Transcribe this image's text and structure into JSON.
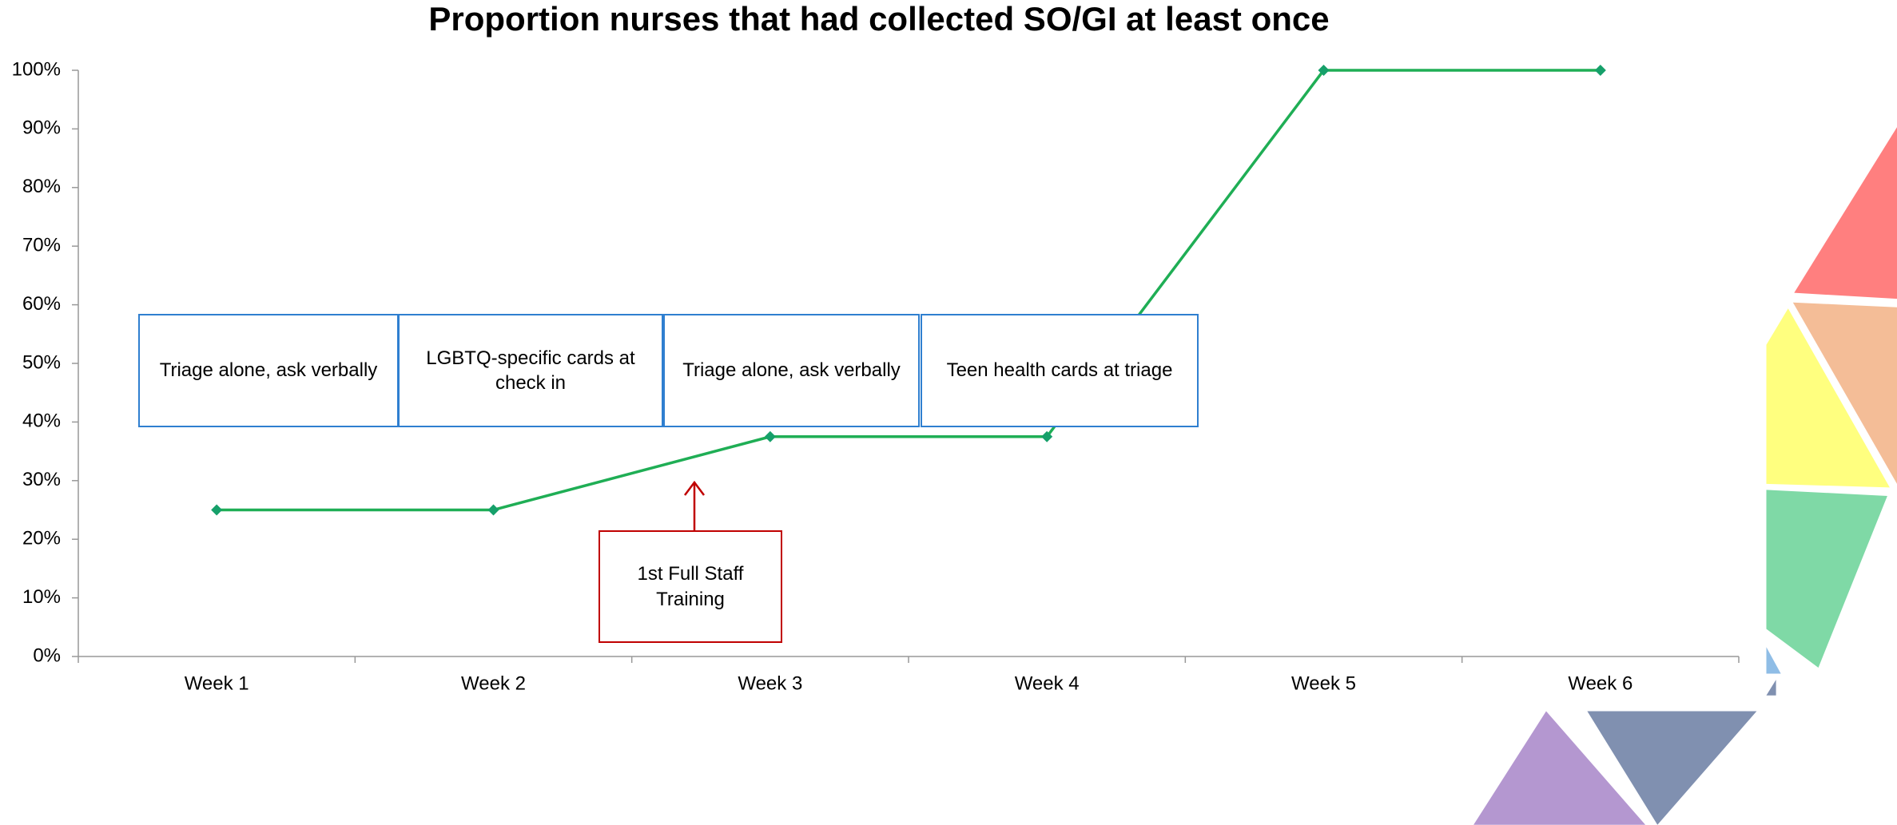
{
  "chart_data": {
    "type": "line",
    "title": "Proportion nurses that had collected SO/GI at least once",
    "categories": [
      "Week 1",
      "Week 2",
      "Week 3",
      "Week 4",
      "Week 5",
      "Week 6"
    ],
    "values": [
      25,
      25,
      37.5,
      37.5,
      100,
      100
    ],
    "color": "#1fae55",
    "marker_color": "#16a06a",
    "ylim": [
      0,
      100
    ],
    "yticks": [
      {
        "value": 0,
        "label": "0%"
      },
      {
        "value": 10,
        "label": "10%"
      },
      {
        "value": 20,
        "label": "20%"
      },
      {
        "value": 30,
        "label": "30%"
      },
      {
        "value": 40,
        "label": "40%"
      },
      {
        "value": 50,
        "label": "50%"
      },
      {
        "value": 60,
        "label": "60%"
      },
      {
        "value": 70,
        "label": "70%"
      },
      {
        "value": 80,
        "label": "80%"
      },
      {
        "value": 90,
        "label": "90%"
      },
      {
        "value": 100,
        "label": "100%"
      }
    ],
    "annotations": [
      "Triage alone, ask verbally",
      "LGBTQ-specific cards at check in",
      "Triage alone, ask verbally",
      "Teen health cards at triage"
    ],
    "callout": "1st Full Staff Training"
  }
}
